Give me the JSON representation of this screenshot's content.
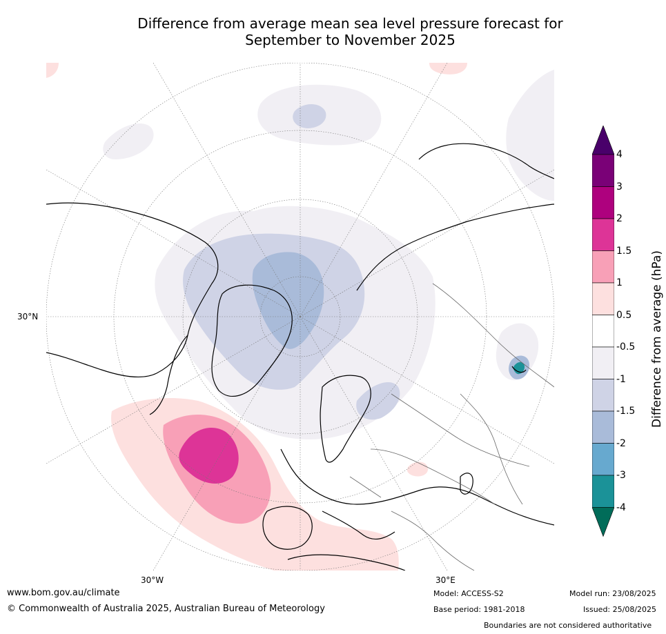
{
  "title_line1": "Difference from average mean sea level pressure forecast for",
  "title_line2": "September to November 2025",
  "map": {
    "labels": {
      "lat_30N": "30°N",
      "lon_30W": "30°W",
      "lon_30E": "30°E"
    },
    "anomaly_regions": [
      {
        "name": "arctic-low",
        "category": "-1 to -0.5",
        "color": "#f1eff4"
      },
      {
        "name": "central-arctic-low",
        "category": "-1.5 to -1",
        "color": "#cfd3e6"
      },
      {
        "name": "north-pole-low-core",
        "category": "-2 to -1.5",
        "color": "#a9bbd9"
      },
      {
        "name": "north-atlantic-high-outer",
        "category": "0.5 to 1",
        "color": "#fde0df"
      },
      {
        "name": "north-atlantic-high",
        "category": "1 to 1.5",
        "color": "#f8a0b7"
      },
      {
        "name": "north-atlantic-high-core",
        "category": "1.5 to 2",
        "color": "#dd3497"
      },
      {
        "name": "central-asia-low-core",
        "category": "-4",
        "color": "#1b9298"
      }
    ]
  },
  "colorbar": {
    "label": "Difference from average (hPa)",
    "ticks": [
      "4",
      "3",
      "2",
      "1.5",
      "1",
      "0.5",
      "-0.5",
      "-1",
      "-1.5",
      "-2",
      "-3",
      "-4"
    ],
    "bands_top_to_bottom": [
      {
        "range": "> 4",
        "color": "#49006a"
      },
      {
        "range": "3 to 4",
        "color": "#7a0177"
      },
      {
        "range": "2 to 3",
        "color": "#ae017e"
      },
      {
        "range": "1.5 to 2",
        "color": "#dd3497"
      },
      {
        "range": "1 to 1.5",
        "color": "#f8a0b7"
      },
      {
        "range": "0.5 to 1",
        "color": "#fde0df"
      },
      {
        "range": "-0.5 to 0.5",
        "color": "#ffffff"
      },
      {
        "range": "-1 to -0.5",
        "color": "#f1eff4"
      },
      {
        "range": "-1.5 to -1",
        "color": "#cfd3e6"
      },
      {
        "range": "-2 to -1.5",
        "color": "#a9bbd9"
      },
      {
        "range": "-3 to -2",
        "color": "#67a9cf"
      },
      {
        "range": "-4 to -3",
        "color": "#1b9298"
      },
      {
        "range": "< -4",
        "color": "#016c59"
      }
    ]
  },
  "footer": {
    "website": "www.bom.gov.au/climate",
    "copyright": "© Commonwealth of Australia 2025, Australian Bureau of Meteorology",
    "model": "Model: ACCESS-S2",
    "base_period": "Base period: 1981-2018",
    "model_run": "Model run: 23/08/2025",
    "issued": "Issued: 25/08/2025",
    "disclaimer": "Boundaries are not considered authoritative"
  }
}
